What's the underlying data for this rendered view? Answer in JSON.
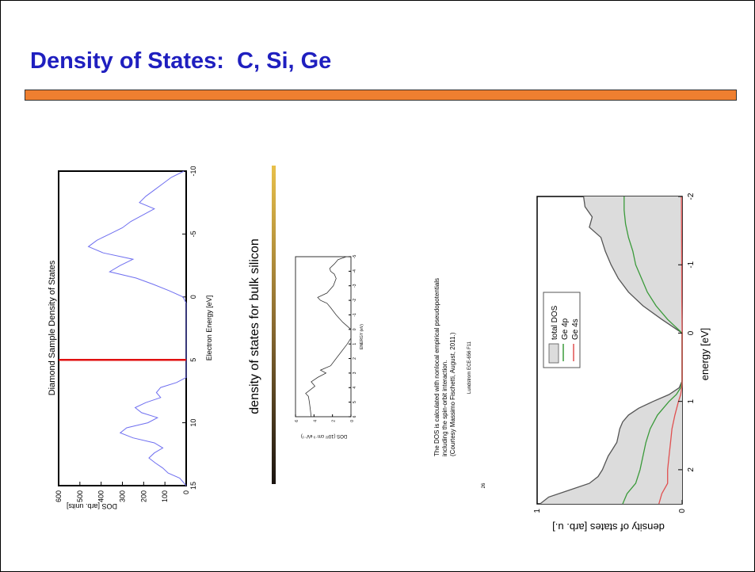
{
  "slide": {
    "title": "Density of States:  C, Si, Ge",
    "colors": {
      "title": "#1f1fbf",
      "accent_bar": "#ef7f30"
    }
  },
  "chart_data": [
    {
      "type": "line",
      "title": "Diamond Sample Density of States",
      "xlabel": "Electron Energy [eV]",
      "ylabel": "DOS [arb. units]",
      "xlim": [
        -10,
        15
      ],
      "ylim": [
        0,
        600
      ],
      "xticks": [
        "-10",
        "-5",
        "0",
        "5",
        "10",
        "15"
      ],
      "yticks": [
        "0",
        "100",
        "200",
        "300",
        "400",
        "500",
        "600"
      ],
      "fermi_line_x": 5,
      "series": [
        {
          "color": "#6f6ff0",
          "x": [
            -10,
            -9.5,
            -9,
            -8.5,
            -8,
            -7.5,
            -7,
            -6.5,
            -6,
            -5.5,
            -5,
            -4.5,
            -4,
            -3.5,
            -3,
            -2.5,
            -2,
            -1.5,
            -1,
            -0.5,
            0,
            0.5,
            6.4,
            6.8,
            7.2,
            7.6,
            8,
            8.4,
            8.8,
            9.2,
            9.6,
            10,
            10.4,
            10.8,
            11.2,
            11.6,
            12,
            12.4,
            12.8,
            13.2,
            13.6,
            14,
            14.4,
            14.8,
            15
          ],
          "y": [
            10,
            70,
            110,
            150,
            190,
            220,
            150,
            205,
            260,
            300,
            360,
            420,
            460,
            390,
            250,
            310,
            360,
            235,
            155,
            80,
            15,
            0,
            0,
            45,
            120,
            140,
            120,
            190,
            240,
            210,
            135,
            180,
            280,
            310,
            250,
            150,
            110,
            150,
            175,
            145,
            110,
            85,
            30,
            10,
            0
          ]
        }
      ]
    },
    {
      "type": "line",
      "title": "density of states for bulk silicon",
      "xlabel": "ENERGY (eV)",
      "ylabel": "DOS (10²² cm⁻³ eV⁻¹)",
      "xlim": [
        -5,
        6
      ],
      "ylim": [
        0,
        6
      ],
      "xticks": [
        "-5",
        "-4",
        "-3",
        "-2",
        "-1",
        "0",
        "1",
        "2",
        "3",
        "4",
        "5",
        "6"
      ],
      "yticks": [
        "0",
        "2",
        "4",
        "6"
      ],
      "series": [
        {
          "color": "#333333",
          "x": [
            -5,
            -4.8,
            -4.5,
            -4.2,
            -4,
            -3.8,
            -3.5,
            -3,
            -2.5,
            -2.2,
            -2,
            -1.8,
            -1.5,
            -1,
            -0.5,
            0,
            0.6,
            1,
            1.5,
            2,
            2.5,
            2.8,
            3,
            3.3,
            3.6,
            3.9,
            4.2,
            4.4,
            4.6,
            5,
            5.5,
            6
          ],
          "y": [
            0.5,
            1.4,
            1.8,
            2.3,
            2.2,
            1.8,
            1.6,
            1.9,
            2.6,
            3.6,
            3.3,
            2.6,
            2.2,
            1.6,
            0.9,
            0,
            0,
            0.4,
            1.0,
            1.6,
            2.2,
            3.3,
            2.7,
            3.6,
            4.3,
            3.9,
            4.5,
            4.9,
            4.6,
            4.5,
            4.4,
            4.3
          ]
        }
      ],
      "caption": [
        "The DOS is calculated with nonlocal empirical pseudopotentials",
        "including the spin-orbit interaction.",
        "(Courtesy Massimo Fischetti, August, 2011.)"
      ],
      "footer": "Lundstrom ECE-656 F11",
      "page_number": "26"
    },
    {
      "type": "area",
      "xlabel": "energy [eV]",
      "ylabel": "density of states [arb. u.]",
      "xlim": [
        -2,
        2.5
      ],
      "ylim": [
        0,
        1
      ],
      "xticks": [
        "-2",
        "-1",
        "0",
        "1",
        "2"
      ],
      "yticks": [
        "0",
        "1"
      ],
      "legend": {
        "position": "top-left",
        "entries": [
          "total DOS",
          "Ge 4p",
          "Ge 4s"
        ]
      },
      "series": [
        {
          "name": "total DOS",
          "color": "#555555",
          "fill": "#dcdcdc",
          "x": [
            -2,
            -1.85,
            -1.7,
            -1.55,
            -1.4,
            -1.2,
            -1.0,
            -0.8,
            -0.6,
            -0.4,
            -0.2,
            0,
            0.05,
            0.7,
            0.8,
            0.9,
            1.0,
            1.1,
            1.2,
            1.3,
            1.4,
            1.5,
            1.6,
            1.7,
            1.8,
            1.9,
            2.0,
            2.1,
            2.2,
            2.3,
            2.4,
            2.5
          ],
          "y": [
            0.68,
            0.67,
            0.62,
            0.64,
            0.56,
            0.53,
            0.49,
            0.44,
            0.37,
            0.27,
            0.14,
            0.0,
            0.0,
            0.0,
            0.02,
            0.09,
            0.2,
            0.3,
            0.37,
            0.41,
            0.43,
            0.44,
            0.45,
            0.48,
            0.51,
            0.53,
            0.55,
            0.58,
            0.64,
            0.78,
            0.92,
            0.98
          ]
        },
        {
          "name": "Ge 4p",
          "color": "#3a9a3a",
          "x": [
            -2,
            -1.8,
            -1.6,
            -1.4,
            -1.2,
            -1.0,
            -0.8,
            -0.6,
            -0.4,
            -0.2,
            0,
            0.05,
            0.7,
            0.8,
            0.9,
            1.0,
            1.2,
            1.4,
            1.6,
            1.8,
            2.0,
            2.2,
            2.35,
            2.5
          ],
          "y": [
            0.4,
            0.4,
            0.39,
            0.37,
            0.34,
            0.32,
            0.28,
            0.24,
            0.18,
            0.1,
            0.0,
            0.0,
            0.0,
            0.01,
            0.04,
            0.09,
            0.17,
            0.22,
            0.25,
            0.27,
            0.29,
            0.32,
            0.38,
            0.41
          ]
        },
        {
          "name": "Ge 4s",
          "color": "#e05050",
          "x": [
            -2,
            -1.0,
            -0.5,
            0,
            0.05,
            0.7,
            0.8,
            0.9,
            1.0,
            1.2,
            1.4,
            1.6,
            1.8,
            2.0,
            2.2,
            2.35,
            2.5
          ],
          "y": [
            0.005,
            0.003,
            0.002,
            0.0,
            0.0,
            0.0,
            0.003,
            0.01,
            0.025,
            0.05,
            0.07,
            0.08,
            0.09,
            0.1,
            0.1,
            0.14,
            0.16
          ]
        }
      ]
    }
  ]
}
